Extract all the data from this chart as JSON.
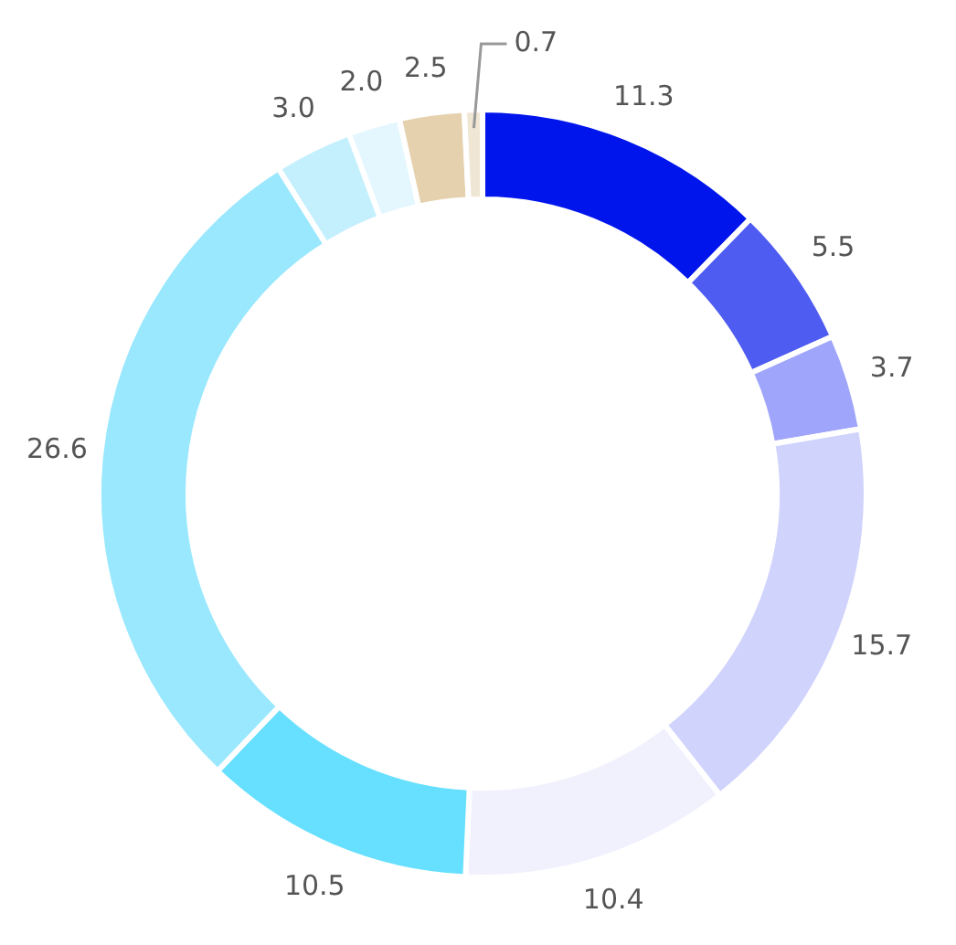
{
  "chart_data": {
    "type": "donut",
    "categories": [
      null,
      null,
      null,
      null,
      null,
      null,
      null,
      null,
      null,
      null,
      null
    ],
    "values": [
      11.3,
      5.5,
      3.7,
      15.7,
      10.4,
      10.5,
      26.6,
      3.0,
      2.0,
      2.5,
      0.7
    ],
    "value_labels": [
      "11.3",
      "5.5",
      "3.7",
      "15.7",
      "10.4",
      "10.5",
      "26.6",
      "3.0",
      "2.0",
      "2.5",
      "0.7"
    ],
    "colors": [
      "#0015ec",
      "#4f5cf2",
      "#9ea5fa",
      "#d0d3fc",
      "#f1f1fe",
      "#66e0fe",
      "#99e8fe",
      "#c4f0fe",
      "#e4f7fe",
      "#e5d1ad",
      "#f0e6d4"
    ]
  }
}
